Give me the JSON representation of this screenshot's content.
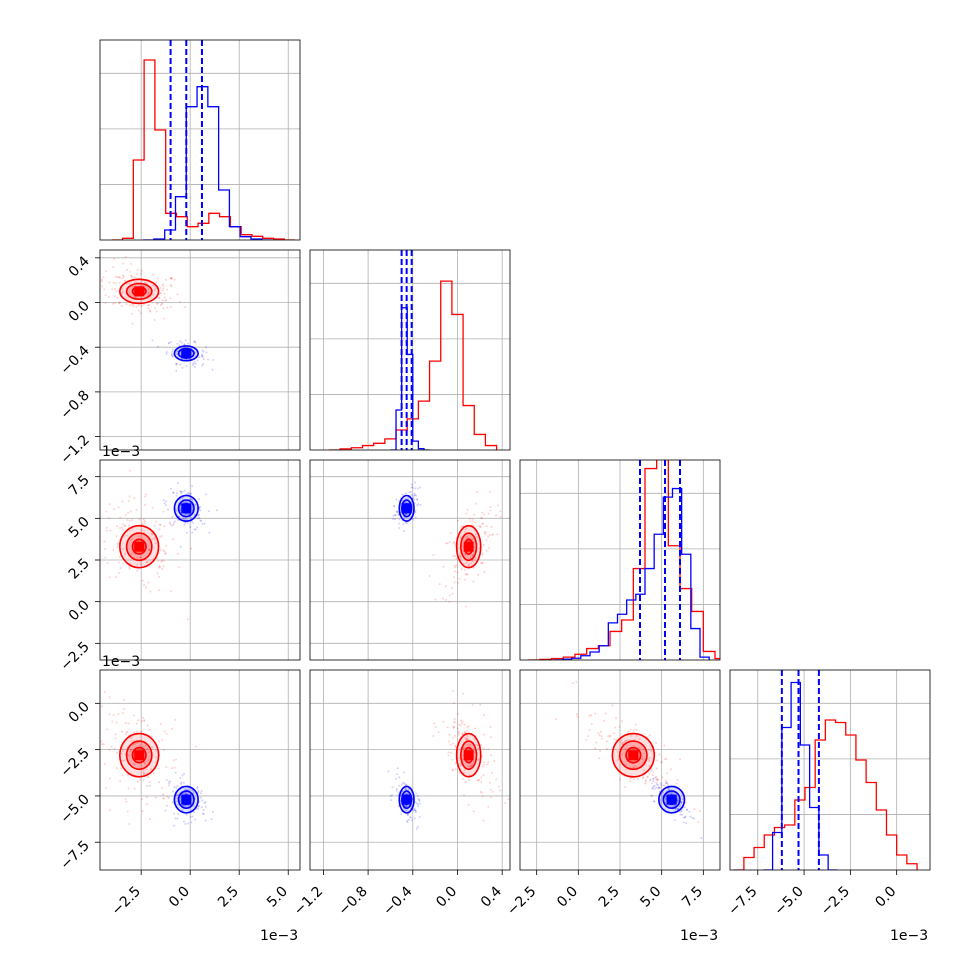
{
  "colors": {
    "red": "#ff0000",
    "blue": "#0000ff",
    "grid": "#b0b0b0",
    "axis": "#000000"
  },
  "chart_data": {
    "type": "corner",
    "title": "",
    "params": [
      {
        "ticks": [
          -2.5,
          0.0,
          2.5,
          5.0
        ],
        "tick_labels": [
          "−2.5",
          "0.0",
          "2.5",
          "5.0"
        ],
        "range": [
          -4.6,
          5.6
        ],
        "scale_label": "1e−3"
      },
      {
        "ticks": [
          -1.2,
          -0.8,
          -0.4,
          0.0,
          0.4
        ],
        "tick_labels": [
          "−1.2",
          "−0.8",
          "−0.4",
          "0.0",
          "0.4"
        ],
        "range": [
          -1.32,
          0.47
        ],
        "scale_label": ""
      },
      {
        "ticks": [
          -2.5,
          0.0,
          2.5,
          5.0,
          7.5
        ],
        "tick_labels": [
          "−2.5",
          "0.0",
          "2.5",
          "5.0",
          "7.5"
        ],
        "range": [
          -3.5,
          8.5
        ],
        "scale_label": "1e−3"
      },
      {
        "ticks": [
          -7.5,
          -5.0,
          -2.5,
          0.0
        ],
        "tick_labels": [
          "−7.5",
          "−5.0",
          "−2.5",
          "0.0"
        ],
        "range": [
          -9.0,
          1.8
        ],
        "scale_label": "1e−3"
      }
    ],
    "series": [
      {
        "color": "#ff0000",
        "hist": [
          [
            0,
            0.5,
            24,
            54,
            33,
            8,
            7,
            4,
            5,
            8,
            7,
            4,
            1.6,
            1.1,
            0.5,
            0.3,
            0
          ],
          [
            0,
            0.5,
            1,
            2,
            3,
            5,
            9,
            14,
            22,
            40,
            76,
            61,
            20,
            7,
            2
          ],
          [
            0,
            0.2,
            0.5,
            1,
            2,
            4,
            5,
            10,
            14,
            32,
            67,
            85,
            40,
            25,
            17,
            3,
            0.5
          ],
          [
            0,
            5,
            9,
            14,
            17,
            18,
            28,
            33,
            52,
            60,
            59,
            54,
            44,
            35,
            24,
            14,
            6,
            2.5
          ]
        ],
        "centers": [
          [
            -2.6,
            0.1,
            3.3,
            -2.8
          ],
          [
            -2.6,
            0.1,
            3.3,
            -2.8
          ],
          [
            -2.6,
            0.1,
            3.3,
            -2.8
          ],
          [
            -2.6,
            0.1,
            3.3,
            -2.8
          ]
        ]
      },
      {
        "color": "#0000ff",
        "hist": [
          [
            0,
            0.3,
            3,
            13,
            40,
            46,
            40,
            15,
            4,
            1,
            0.3,
            0
          ],
          [
            0,
            18,
            64,
            43,
            4,
            0.6,
            0
          ],
          [
            0,
            0.3,
            0.6,
            1.5,
            2.8,
            5,
            13,
            16,
            21,
            23,
            32,
            44,
            57,
            60,
            37,
            11,
            1
          ],
          [
            0,
            15,
            57,
            75,
            50,
            25,
            6,
            0
          ]
        ],
        "quantiles": [
          [
            -1.0,
            -0.2,
            0.6
          ],
          [
            -0.5,
            -0.455,
            -0.41
          ],
          [
            3.7,
            5.2,
            6.1
          ],
          [
            -6.2,
            -5.3,
            -4.2
          ]
        ]
      }
    ],
    "hist_x": [
      {
        "start": -4.0,
        "step": 0.55
      },
      {
        "start": -1.15,
        "step": 0.1
      },
      {
        "start": -3.0,
        "step": 0.7
      },
      {
        "start": -8.8,
        "step": 0.55
      }
    ],
    "blue_hist_x": [
      {
        "start": -2.4,
        "step": 0.55
      },
      {
        "start": -0.6,
        "step": 0.05
      },
      {
        "start": -1.5,
        "step": 0.55
      },
      {
        "start": -7.2,
        "step": 0.5
      }
    ],
    "ylim_hist": [
      60,
      90,
      70,
      80
    ]
  }
}
